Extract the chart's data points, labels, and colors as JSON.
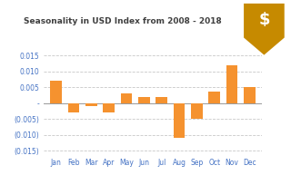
{
  "title": "Seasonality in USD Index from 2008 - 2018",
  "categories": [
    "Jan",
    "Feb",
    "Mar",
    "Apr",
    "May",
    "Jun",
    "Jul",
    "Aug",
    "Sep",
    "Oct",
    "Nov",
    "Dec"
  ],
  "values": [
    0.007,
    -0.003,
    -0.001,
    -0.003,
    0.003,
    0.002,
    0.002,
    -0.011,
    -0.005,
    0.0035,
    0.012,
    0.005
  ],
  "bar_color": "#F5922F",
  "background_color": "#ffffff",
  "ylim": [
    -0.016,
    0.017
  ],
  "yticks": [
    -0.015,
    -0.01,
    -0.005,
    0.0,
    0.005,
    0.01,
    0.015
  ],
  "grid_color": "#c8c8c8",
  "title_color": "#404040",
  "tick_color": "#4472C4",
  "badge_color": "#C68A00",
  "icon_color": "#ffffff"
}
